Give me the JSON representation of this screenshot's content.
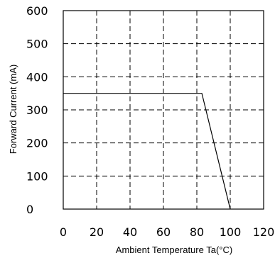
{
  "chart_data": {
    "type": "line",
    "title": "",
    "xlabel": "Ambient Temperature Ta(°C)",
    "ylabel": "Forward Current (mA)",
    "xlim": [
      0,
      120
    ],
    "ylim": [
      0,
      600
    ],
    "xticks": [
      0,
      20,
      40,
      60,
      80,
      100,
      120
    ],
    "xtick_labels": [
      "0",
      "20",
      "40",
      "60",
      "80",
      "100",
      "120"
    ],
    "yticks": [
      0,
      100,
      200,
      300,
      400,
      500,
      600
    ],
    "ytick_labels": [
      "0",
      "100",
      "200",
      "300",
      "400",
      "500",
      "600"
    ],
    "grid": true,
    "legend": "none",
    "series": [
      {
        "x": [
          0,
          83,
          100
        ],
        "y": [
          350,
          350,
          0
        ]
      }
    ]
  }
}
